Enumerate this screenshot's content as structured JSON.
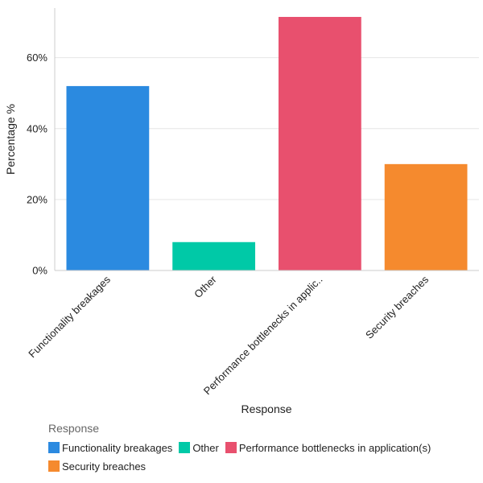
{
  "chart_data": {
    "type": "bar",
    "categories": [
      "Functionality breakages",
      "Other",
      "Performance bottlenecks in applic..",
      "Security breaches"
    ],
    "values": [
      52,
      8,
      71.5,
      30
    ],
    "colors": [
      "#2b8ae0",
      "#00c9a7",
      "#e8506e",
      "#f58a2e"
    ],
    "xlabel": "Response",
    "ylabel": "Percentage %",
    "ylim": [
      0,
      74
    ],
    "yticks": [
      0,
      20,
      40,
      60
    ],
    "ytick_labels": [
      "0%",
      "20%",
      "40%",
      "60%"
    ],
    "grid": true,
    "legend": {
      "title": "Response",
      "placement": "bottom-left",
      "items": [
        {
          "label": "Functionality breakages",
          "color": "#2b8ae0"
        },
        {
          "label": "Other",
          "color": "#00c9a7"
        },
        {
          "label": "Performance bottlenecks in application(s)",
          "color": "#e8506e"
        },
        {
          "label": "Security breaches",
          "color": "#f58a2e"
        }
      ]
    }
  }
}
